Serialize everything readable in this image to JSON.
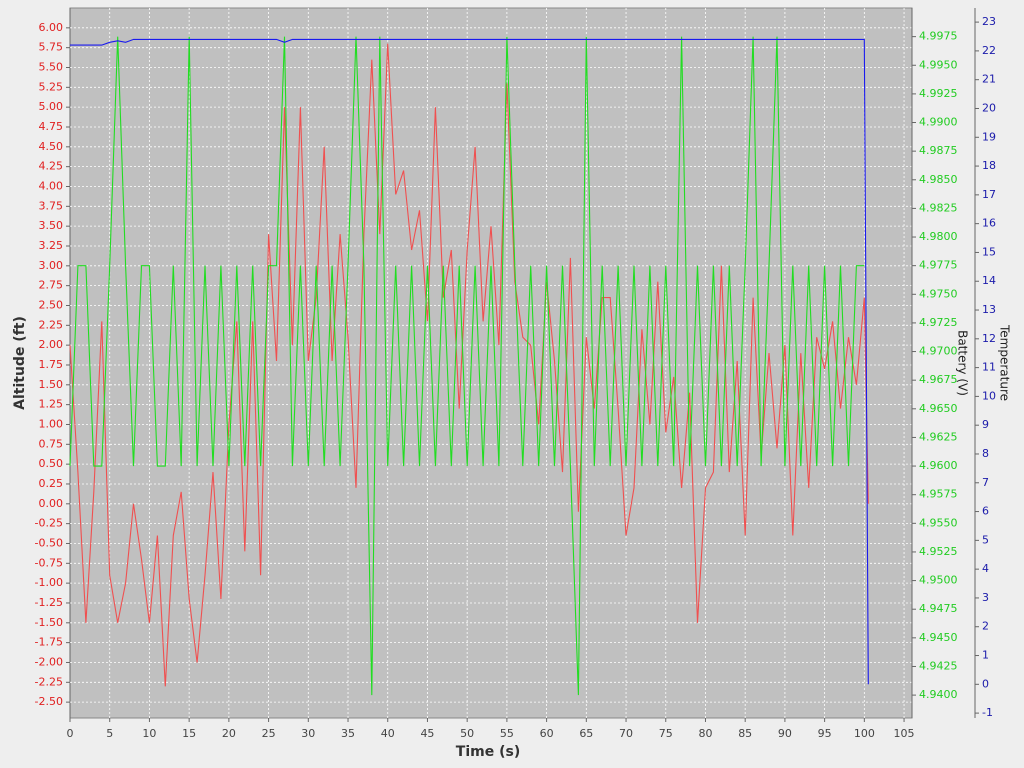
{
  "chart_data": {
    "type": "line",
    "x_label": "Time (s)",
    "y_label": "Altitude (ft)",
    "y2_label": "Battery (V)",
    "y3_label": "Temperature",
    "grid": true,
    "xlim": [
      0,
      106
    ],
    "xticks": [
      0,
      5,
      10,
      15,
      20,
      25,
      30,
      35,
      40,
      45,
      50,
      55,
      60,
      65,
      70,
      75,
      80,
      85,
      90,
      95,
      100,
      105
    ],
    "ylim": [
      -2.7,
      6.25
    ],
    "yticks": [
      {
        "value": -2.5,
        "label": "-2.50"
      },
      {
        "value": -2.25,
        "label": "-2.25"
      },
      {
        "value": -2,
        "label": "-2.00"
      },
      {
        "value": -1.75,
        "label": "-1.75"
      },
      {
        "value": -1.5,
        "label": "-1.50"
      },
      {
        "value": -1.25,
        "label": "-1.25"
      },
      {
        "value": -1,
        "label": "-1.00"
      },
      {
        "value": -0.75,
        "label": "-0.75"
      },
      {
        "value": -0.5,
        "label": "-0.50"
      },
      {
        "value": -0.25,
        "label": "-0.25"
      },
      {
        "value": 0,
        "label": "0.00"
      },
      {
        "value": 0.25,
        "label": "0.25"
      },
      {
        "value": 0.5,
        "label": "0.50"
      },
      {
        "value": 0.75,
        "label": "0.75"
      },
      {
        "value": 1,
        "label": "1.00"
      },
      {
        "value": 1.25,
        "label": "1.25"
      },
      {
        "value": 1.5,
        "label": "1.50"
      },
      {
        "value": 1.75,
        "label": "1.75"
      },
      {
        "value": 2,
        "label": "2.00"
      },
      {
        "value": 2.25,
        "label": "2.25"
      },
      {
        "value": 2.5,
        "label": "2.50"
      },
      {
        "value": 2.75,
        "label": "2.75"
      },
      {
        "value": 3,
        "label": "3.00"
      },
      {
        "value": 3.25,
        "label": "3.25"
      },
      {
        "value": 3.5,
        "label": "3.50"
      },
      {
        "value": 3.75,
        "label": "3.75"
      },
      {
        "value": 4,
        "label": "4.00"
      },
      {
        "value": 4.25,
        "label": "4.25"
      },
      {
        "value": 4.5,
        "label": "4.50"
      },
      {
        "value": 4.75,
        "label": "4.75"
      },
      {
        "value": 5,
        "label": "5.00"
      },
      {
        "value": 5.25,
        "label": "5.25"
      },
      {
        "value": 5.5,
        "label": "5.50"
      },
      {
        "value": 5.75,
        "label": "5.75"
      },
      {
        "value": 6,
        "label": "6.00"
      }
    ],
    "y2lim": [
      4.938,
      5.0
    ],
    "y2ticks": [
      {
        "value": 4.94,
        "label": "4.9400"
      },
      {
        "value": 4.9425,
        "label": "4.9425"
      },
      {
        "value": 4.945,
        "label": "4.9450"
      },
      {
        "value": 4.9475,
        "label": "4.9475"
      },
      {
        "value": 4.95,
        "label": "4.9500"
      },
      {
        "value": 4.9525,
        "label": "4.9525"
      },
      {
        "value": 4.955,
        "label": "4.9550"
      },
      {
        "value": 4.9575,
        "label": "4.9575"
      },
      {
        "value": 4.96,
        "label": "4.9600"
      },
      {
        "value": 4.9625,
        "label": "4.9625"
      },
      {
        "value": 4.965,
        "label": "4.9650"
      },
      {
        "value": 4.9675,
        "label": "4.9675"
      },
      {
        "value": 4.97,
        "label": "4.9700"
      },
      {
        "value": 4.9725,
        "label": "4.9725"
      },
      {
        "value": 4.975,
        "label": "4.9750"
      },
      {
        "value": 4.9775,
        "label": "4.9775"
      },
      {
        "value": 4.98,
        "label": "4.9800"
      },
      {
        "value": 4.9825,
        "label": "4.9825"
      },
      {
        "value": 4.985,
        "label": "4.9850"
      },
      {
        "value": 4.9875,
        "label": "4.9875"
      },
      {
        "value": 4.99,
        "label": "4.9900"
      },
      {
        "value": 4.9925,
        "label": "4.9925"
      },
      {
        "value": 4.995,
        "label": "4.9950"
      },
      {
        "value": 4.9975,
        "label": "4.9975"
      }
    ],
    "y3lim": [
      -1.17,
      23.49
    ],
    "y3ticks": [
      -1,
      0,
      1,
      2,
      3,
      4,
      5,
      6,
      7,
      8,
      9,
      10,
      11,
      12,
      13,
      14,
      15,
      16,
      17,
      18,
      19,
      20,
      21,
      22,
      23
    ],
    "x": [
      0,
      1,
      2,
      3,
      4,
      5,
      6,
      7,
      8,
      9,
      10,
      11,
      12,
      13,
      14,
      15,
      16,
      17,
      18,
      19,
      20,
      21,
      22,
      23,
      24,
      25,
      26,
      27,
      28,
      29,
      30,
      31,
      32,
      33,
      34,
      35,
      36,
      37,
      38,
      39,
      40,
      41,
      42,
      43,
      44,
      45,
      46,
      47,
      48,
      49,
      50,
      51,
      52,
      53,
      54,
      55,
      56,
      57,
      58,
      59,
      60,
      61,
      62,
      63,
      64,
      65,
      66,
      67,
      68,
      69,
      70,
      71,
      72,
      73,
      74,
      75,
      76,
      77,
      78,
      79,
      80,
      81,
      82,
      83,
      84,
      85,
      86,
      87,
      88,
      89,
      90,
      91,
      92,
      93,
      94,
      95,
      96,
      97,
      98,
      99,
      100,
      100.5
    ],
    "series": [
      {
        "name": "Altitude",
        "axis": "y",
        "color": "#f05050",
        "text_color": "#e02020",
        "values": [
          2.0,
          0.4,
          -1.5,
          0.15,
          2.3,
          -0.9,
          -1.5,
          -1.0,
          0.0,
          -0.7,
          -1.5,
          -0.4,
          -2.3,
          -0.4,
          0.15,
          -1.2,
          -2.0,
          -0.9,
          0.4,
          -1.2,
          1.0,
          2.3,
          -0.6,
          2.3,
          -0.9,
          3.4,
          1.8,
          5.0,
          2.0,
          5.0,
          1.8,
          2.6,
          4.5,
          1.8,
          3.4,
          2.1,
          0.2,
          3.4,
          5.6,
          3.4,
          5.8,
          3.9,
          4.2,
          3.2,
          3.7,
          2.3,
          5.0,
          2.6,
          3.2,
          1.2,
          3.2,
          4.5,
          2.3,
          3.5,
          2.0,
          5.3,
          2.8,
          2.1,
          2.0,
          1.0,
          2.8,
          1.8,
          0.4,
          3.1,
          -0.1,
          2.1,
          1.2,
          2.6,
          2.6,
          1.2,
          -0.4,
          0.2,
          2.2,
          1.0,
          2.8,
          0.9,
          1.6,
          0.2,
          1.4,
          -1.5,
          0.2,
          0.4,
          3.0,
          0.4,
          1.8,
          -0.4,
          2.6,
          0.6,
          1.9,
          0.7,
          2.0,
          -0.4,
          1.9,
          0.2,
          2.1,
          1.7,
          2.3,
          1.2,
          2.1,
          1.5,
          2.6,
          0.0
        ]
      },
      {
        "name": "Battery",
        "axis": "y2",
        "color": "#22dd22",
        "text_color": "#22cc22",
        "values": [
          4.96,
          4.9775,
          4.9775,
          4.96,
          4.96,
          4.9775,
          4.9975,
          4.9775,
          4.96,
          4.9775,
          4.9775,
          4.96,
          4.96,
          4.9775,
          4.96,
          4.9975,
          4.96,
          4.9775,
          4.96,
          4.9775,
          4.96,
          4.9775,
          4.96,
          4.9775,
          4.96,
          4.9775,
          4.9775,
          4.9975,
          4.96,
          4.9775,
          4.96,
          4.9775,
          4.96,
          4.9775,
          4.96,
          4.9775,
          4.9975,
          4.9775,
          4.94,
          4.9975,
          4.96,
          4.9775,
          4.96,
          4.9775,
          4.96,
          4.9775,
          4.96,
          4.9775,
          4.96,
          4.9775,
          4.96,
          4.9775,
          4.96,
          4.9775,
          4.96,
          4.9975,
          4.9775,
          4.96,
          4.9775,
          4.96,
          4.9775,
          4.96,
          4.9775,
          4.96,
          4.94,
          4.9975,
          4.96,
          4.9775,
          4.96,
          4.9775,
          4.96,
          4.9775,
          4.96,
          4.9775,
          4.96,
          4.9775,
          4.96,
          4.9975,
          4.96,
          4.9775,
          4.96,
          4.9775,
          4.96,
          4.9775,
          4.96,
          4.9775,
          4.9975,
          4.96,
          4.9775,
          4.9975,
          4.96,
          4.9775,
          4.96,
          4.9775,
          4.96,
          4.9775,
          4.96,
          4.9775,
          4.96,
          4.9775,
          4.9775,
          null
        ]
      },
      {
        "name": "Temperature",
        "axis": "y3",
        "color": "#1a1aee",
        "text_color": "#1a1aaa",
        "values": [
          22.2,
          22.2,
          22.2,
          22.2,
          22.2,
          22.3,
          22.35,
          22.3,
          22.4,
          22.4,
          22.4,
          22.4,
          22.4,
          22.4,
          22.4,
          22.4,
          22.4,
          22.4,
          22.4,
          22.4,
          22.4,
          22.4,
          22.4,
          22.4,
          22.4,
          22.4,
          22.4,
          22.3,
          22.4,
          22.4,
          22.4,
          22.4,
          22.4,
          22.4,
          22.4,
          22.4,
          22.4,
          22.4,
          22.4,
          22.4,
          22.4,
          22.4,
          22.4,
          22.4,
          22.4,
          22.4,
          22.4,
          22.4,
          22.4,
          22.4,
          22.4,
          22.4,
          22.4,
          22.4,
          22.4,
          22.4,
          22.4,
          22.4,
          22.4,
          22.4,
          22.4,
          22.4,
          22.4,
          22.4,
          22.4,
          22.4,
          22.4,
          22.4,
          22.4,
          22.4,
          22.4,
          22.4,
          22.4,
          22.4,
          22.4,
          22.4,
          22.4,
          22.4,
          22.4,
          22.4,
          22.4,
          22.4,
          22.4,
          22.4,
          22.4,
          22.4,
          22.4,
          22.4,
          22.4,
          22.4,
          22.4,
          22.4,
          22.4,
          22.4,
          22.4,
          22.4,
          22.4,
          22.4,
          22.4,
          22.4,
          22.4,
          0
        ]
      }
    ]
  }
}
